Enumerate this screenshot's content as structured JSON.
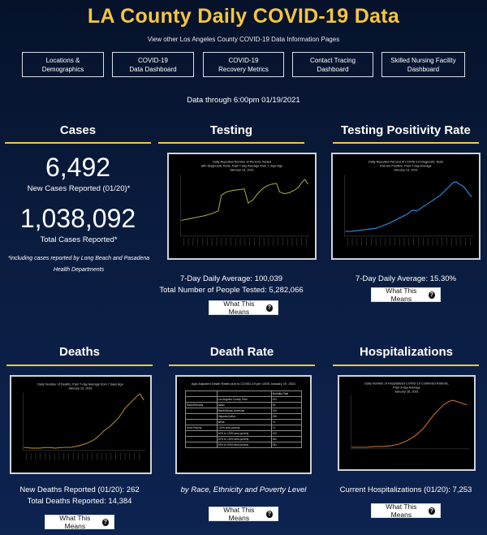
{
  "header": {
    "title": "LA County Daily COVID-19 Data",
    "subtitle": "View other Los Angeles County COVID-19 Data Information Pages"
  },
  "nav": [
    {
      "label": "Locations &\nDemographics"
    },
    {
      "label": "COVID-19\nData Dashboard"
    },
    {
      "label": "COVID-19\nRecovery Metrics"
    },
    {
      "label": "Contact Tracing\nDashboard"
    },
    {
      "label": "Skilled Nursing Facility\nDashboard"
    }
  ],
  "data_through": "Data through 6:00pm 01/19/2021",
  "cases": {
    "title": "Cases",
    "new_cases": "6,492",
    "new_cases_label": "New Cases Reported (01/20)*",
    "total_cases": "1,038,092",
    "total_cases_label": "Total Cases Reported*",
    "note": "*including cases reported by Long Beach and Pasadena Health Departments"
  },
  "testing": {
    "title": "Testing",
    "chart_title": "Daily Reported Number of Persons Tested with Diagnostic Tests, Past 7-day Average from 7 days Ago January 13, 2021",
    "avg": "7-Day Daily Average: 100,039",
    "total": "Total Number of People Tested: 5,282,066",
    "button": "What This Means"
  },
  "positivity": {
    "title": "Testing Positivity Rate",
    "chart_title": "Daily Reported Percent of COVID-19 Diagnostic Tests that are Positive, Past 7-day Average January 13, 2021",
    "avg": "7-Day Daily Average: 15.30%",
    "button": "What This Means"
  },
  "deaths": {
    "title": "Deaths",
    "chart_title": "Daily Number of Deaths, Past 7-day Average from 7 days Ago January 13, 2021",
    "new": "New Deaths Reported (01/20): 262",
    "total": "Total Deaths Reported: 14,384",
    "button": "What This Means"
  },
  "death_rate": {
    "title": "Death Rate",
    "chart_title": "Age-Adjusted Death Rates due to COVID-19 per 100K January 19, 2021",
    "caption": "by Race, Ethnicity and Poverty Level",
    "button": "What This Means",
    "table_header": [
      "",
      "",
      "Mortality Rate"
    ],
    "rows": [
      [
        "",
        "Los Angeles County Total",
        "131"
      ],
      [
        "Race/Ethnicity",
        "Asian",
        "93"
      ],
      [
        "",
        "Black/African American",
        "130"
      ],
      [
        "",
        "Hispanic/Latino",
        "206"
      ],
      [
        "",
        "White",
        "74"
      ],
      [
        "Area Poverty",
        "<10% area poverty",
        "71"
      ],
      [
        "",
        "10% to <20% area poverty",
        "120"
      ],
      [
        "",
        "20% to <30% area poverty",
        "181"
      ],
      [
        "",
        "30% to 100% area poverty",
        "251"
      ]
    ]
  },
  "hospitalizations": {
    "title": "Hospitalizations",
    "chart_title": "Daily Number of Hospitalized COVID-19 Confirmed Patients, Past 3-day Average January 18, 2021",
    "current": "Current Hospitalizations (01/20): 7,253",
    "button": "What This Means"
  },
  "colors": {
    "accent": "#f5c542",
    "background": "#0a1c3f",
    "test_line": "#b5b83a",
    "positivity_line": "#2a8de0",
    "deaths_line": "#c49a2a",
    "hosp_line": "#e07b2a"
  },
  "icons": {
    "help": "question-circle-icon"
  }
}
